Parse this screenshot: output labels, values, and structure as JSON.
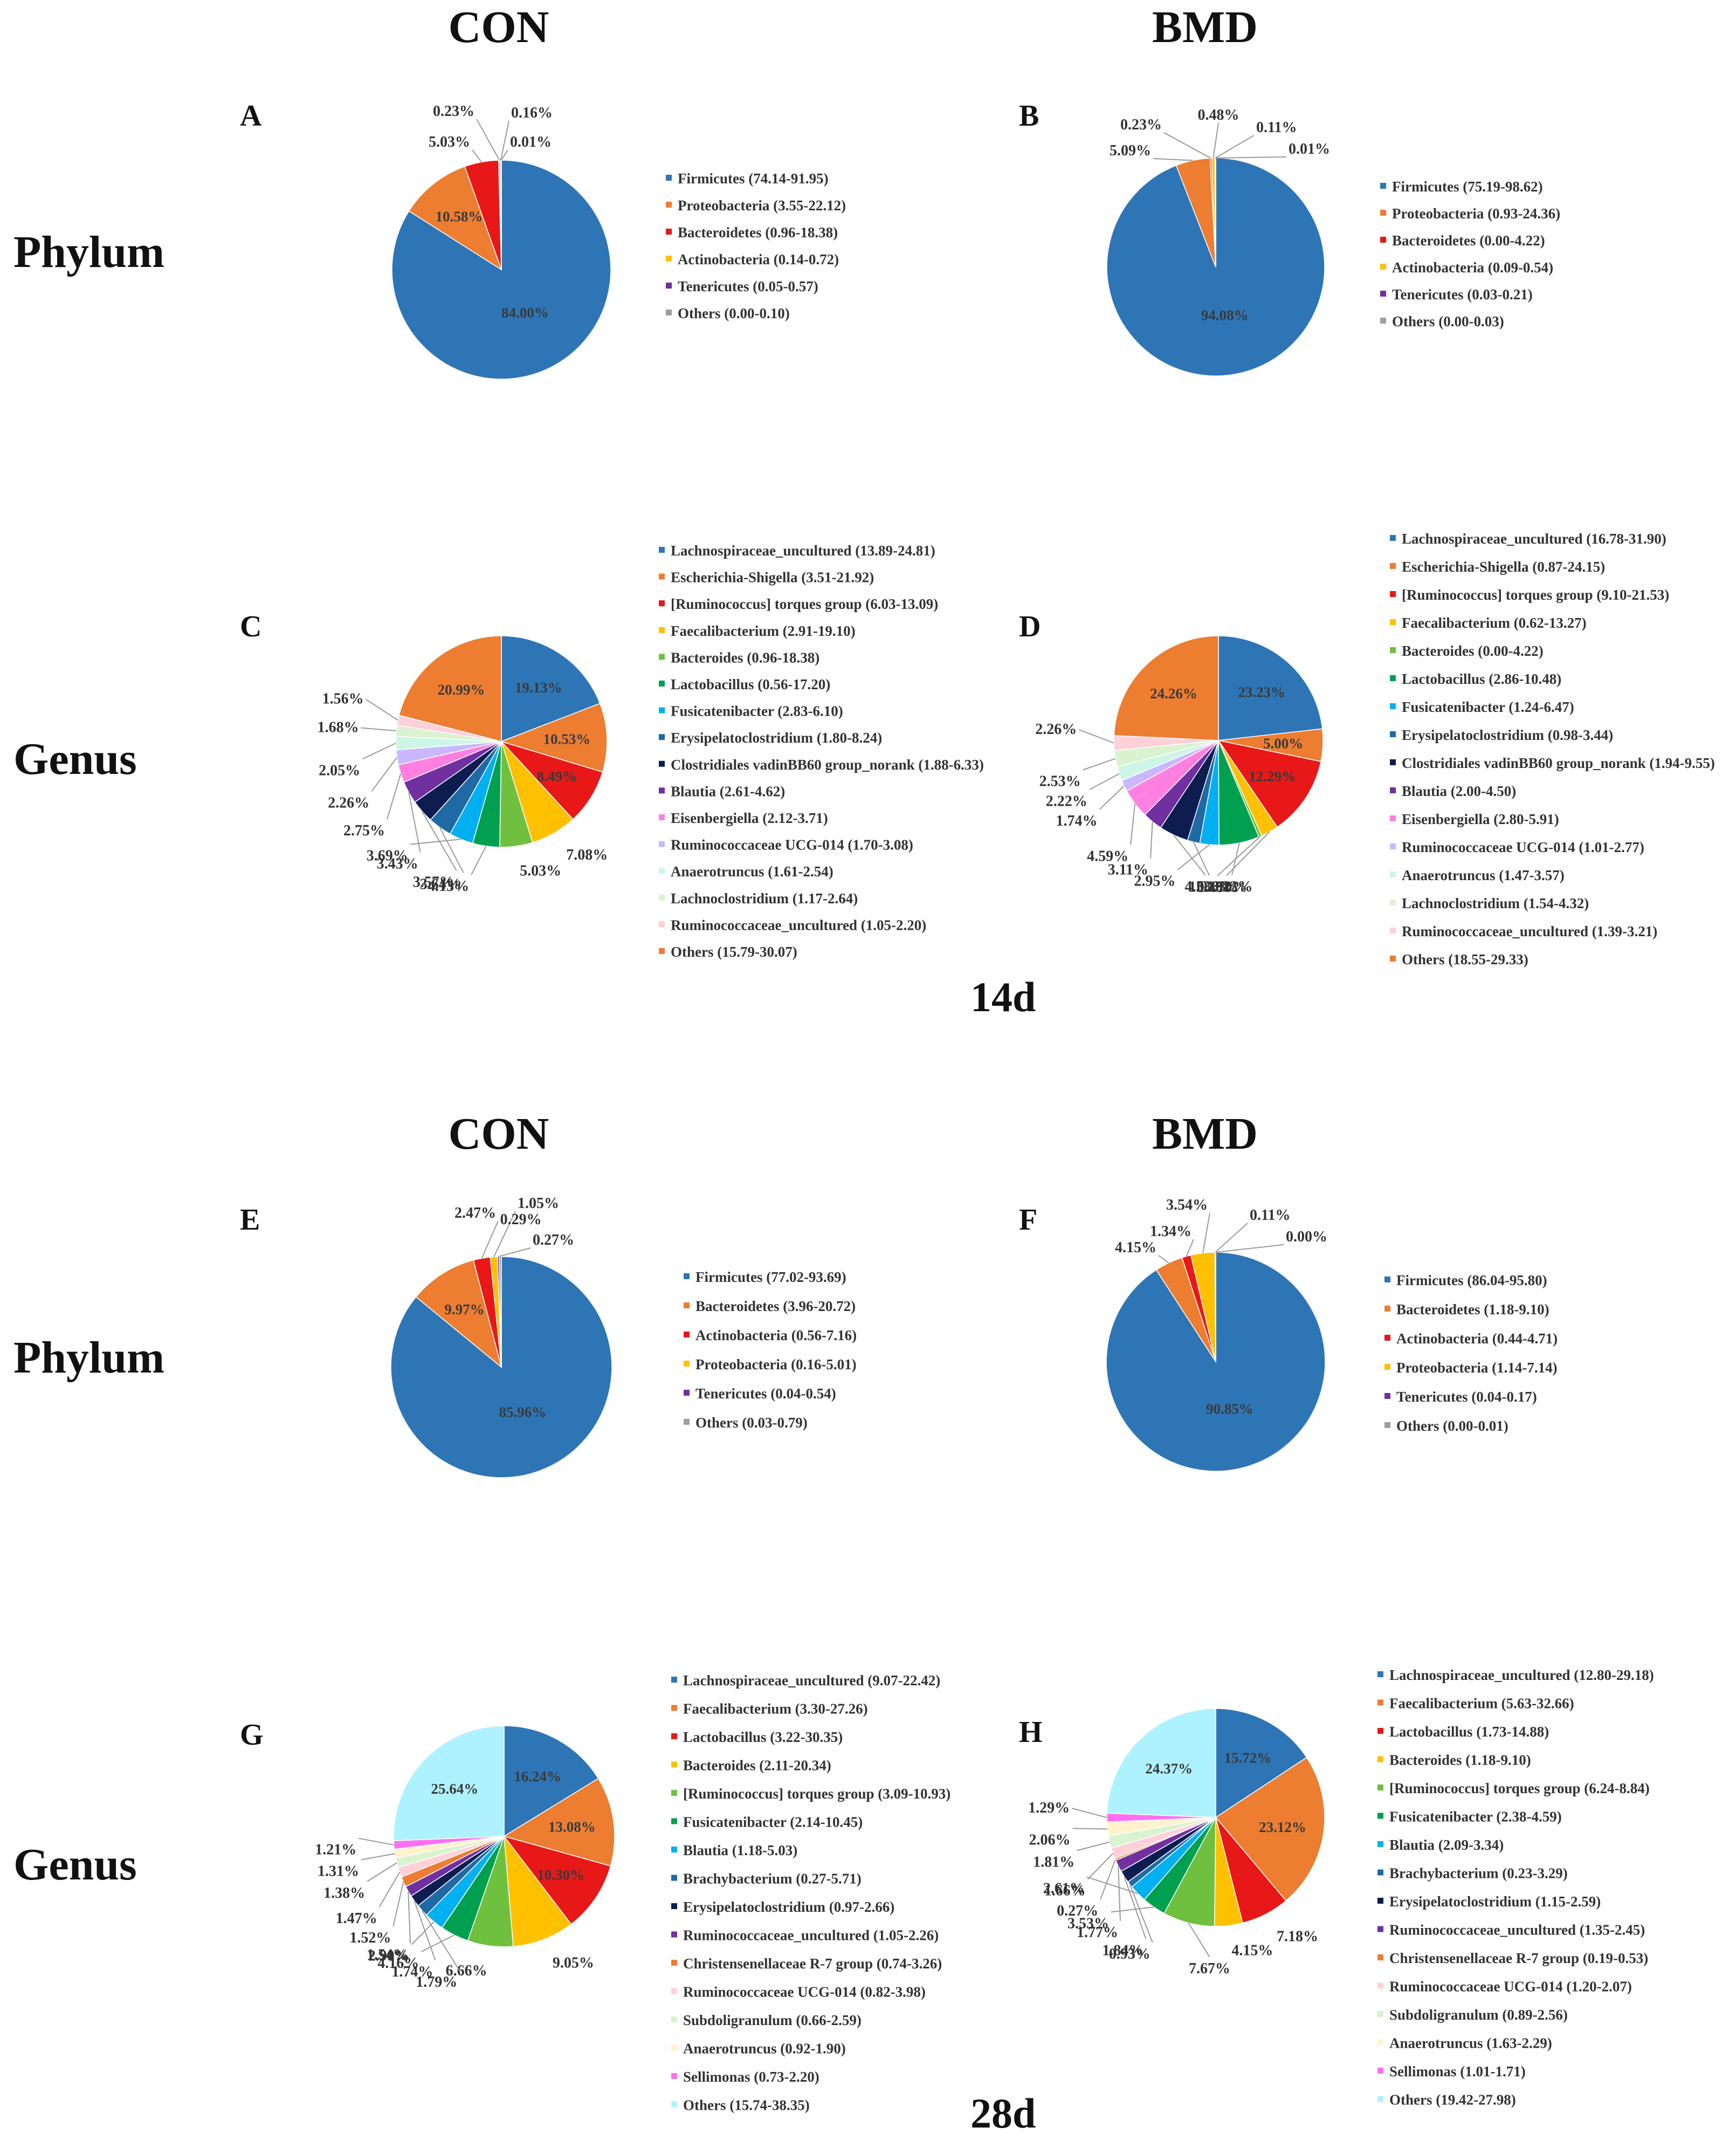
{
  "headers": {
    "con_top": "CON",
    "bmd_top": "BMD",
    "con_bottom": "CON",
    "bmd_bottom": "BMD",
    "phylum_top": "Phylum",
    "genus_top": "Genus",
    "phylum_bottom": "Phylum",
    "genus_bottom": "Genus",
    "day14": "14d",
    "day28": "28d"
  },
  "colors": {
    "blue": "#2e75b6",
    "orange": "#ed7d31",
    "red": "#e81818",
    "yellow": "#ffc000",
    "green": "#70c040",
    "dkgreen": "#00a050",
    "cyan": "#00b0f0",
    "steel": "#1f6aa5",
    "navy": "#0d1d50",
    "purple": "#7030a0",
    "pink": "#ff80e0",
    "lavender": "#c9b8ff",
    "mint": "#cdf5e6",
    "palegreen": "#d9f2d0",
    "blush": "#ffd0d8",
    "cream": "#fff2cc",
    "magenta": "#ff70f0",
    "aqua": "#aef2ff",
    "gray": "#9e9e9e"
  },
  "chart_data": [
    {
      "panel": "A",
      "type": "pie",
      "group": "CON",
      "level": "Phylum",
      "day": "14d",
      "legend": [
        "Firmicutes (74.14-91.95)",
        "Proteobacteria (3.55-22.12)",
        "Bacteroidetes (0.96-18.38)",
        "Actinobacteria (0.14-0.72)",
        "Tenericutes (0.05-0.57)",
        "Others (0.00-0.10)"
      ],
      "values": [
        84.0,
        10.58,
        5.03,
        0.23,
        0.16,
        0.01
      ],
      "labels": [
        "84.00%",
        "10.58%",
        "5.03%",
        "0.23%",
        "0.16%",
        "0.01%"
      ],
      "colors": [
        "blue",
        "orange",
        "red",
        "yellow",
        "purple",
        "gray"
      ]
    },
    {
      "panel": "B",
      "type": "pie",
      "group": "BMD",
      "level": "Phylum",
      "day": "14d",
      "legend": [
        "Firmicutes (75.19-98.62)",
        "Proteobacteria (0.93-24.36)",
        "Bacteroidetes (0.00-4.22)",
        "Actinobacteria (0.09-0.54)",
        "Tenericutes (0.03-0.21)",
        "Others (0.00-0.03)"
      ],
      "values": [
        94.08,
        5.09,
        0.23,
        0.48,
        0.11,
        0.01
      ],
      "labels": [
        "94.08%",
        "5.09%",
        "0.23%",
        "0.48%",
        "0.11%",
        "0.01%"
      ],
      "colors": [
        "blue",
        "orange",
        "red",
        "yellow",
        "purple",
        "gray"
      ]
    },
    {
      "panel": "C",
      "type": "pie",
      "group": "CON",
      "level": "Genus",
      "day": "14d",
      "legend": [
        "Lachnospiraceae_uncultured (13.89-24.81)",
        "Escherichia-Shigella (3.51-21.92)",
        "[Ruminococcus] torques group (6.03-13.09)",
        "Faecalibacterium (2.91-19.10)",
        "Bacteroides (0.96-18.38)",
        "Lactobacillus (0.56-17.20)",
        "Fusicatenibacter (2.83-6.10)",
        "Erysipelatoclostridium (1.80-8.24)",
        "Clostridiales vadinBB60 group_norank (1.88-6.33)",
        "Blautia (2.61-4.62)",
        "Eisenbergiella (2.12-3.71)",
        "Ruminococcaceae UCG-014 (1.70-3.08)",
        "Anaerotruncus (1.61-2.54)",
        "Lachnoclostridium (1.17-2.64)",
        "Ruminococcaceae_uncultured (1.05-2.20)",
        "Others (15.79-30.07)"
      ],
      "values": [
        19.13,
        10.53,
        8.49,
        7.08,
        5.03,
        4.13,
        3.69,
        3.64,
        3.57,
        3.43,
        2.75,
        2.26,
        2.05,
        1.68,
        1.56,
        20.99
      ],
      "labels": [
        "19.13%",
        "10.53%",
        "8.49%",
        "7.08%",
        "5.03%",
        "4.13%",
        "3.69%",
        "3.64%",
        "3.57%",
        "3.43%",
        "2.75%",
        "2.26%",
        "2.05%",
        "1.68%",
        "1.56%",
        "20.99%"
      ],
      "colors": [
        "blue",
        "orange",
        "red",
        "yellow",
        "green",
        "dkgreen",
        "cyan",
        "steel",
        "navy",
        "purple",
        "pink",
        "lavender",
        "mint",
        "palegreen",
        "blush",
        "orange"
      ]
    },
    {
      "panel": "D",
      "type": "pie",
      "group": "BMD",
      "level": "Genus",
      "day": "14d",
      "legend": [
        "Lachnospiraceae_uncultured (16.78-31.90)",
        "Escherichia-Shigella (0.87-24.15)",
        "[Ruminococcus] torques group (9.10-21.53)",
        "Faecalibacterium (0.62-13.27)",
        "Bacteroides (0.00-4.22)",
        "Lactobacillus (2.86-10.48)",
        "Fusicatenibacter (1.24-6.47)",
        "Erysipelatoclostridium (0.98-3.44)",
        "Clostridiales vadinBB60 group_norank (1.94-9.55)",
        "Blautia (2.00-4.50)",
        "Eisenbergiella (2.80-5.91)",
        "Ruminococcaceae UCG-014 (1.01-2.77)",
        "Anaerotruncus (1.47-3.57)",
        "Lachnoclostridium (1.54-4.32)",
        "Ruminococcaceae_uncultured (1.39-3.21)",
        "Others (18.55-29.33)"
      ],
      "values": [
        23.23,
        5.0,
        12.29,
        2.7,
        0.48,
        6.23,
        2.95,
        1.92,
        4.53,
        3.11,
        4.59,
        1.74,
        2.22,
        2.53,
        2.26,
        24.26
      ],
      "labels": [
        "23.23%",
        "5.00%",
        "12.29%",
        "2.70%",
        "0.48%",
        "6.23%",
        "2.95%",
        "1.92%",
        "4.53%",
        "3.11%",
        "4.59%",
        "1.74%",
        "2.22%",
        "2.53%",
        "2.26%",
        "24.26%"
      ],
      "colors": [
        "blue",
        "orange",
        "red",
        "yellow",
        "green",
        "dkgreen",
        "cyan",
        "steel",
        "navy",
        "purple",
        "pink",
        "lavender",
        "mint",
        "palegreen",
        "blush",
        "orange"
      ]
    },
    {
      "panel": "E",
      "type": "pie",
      "group": "CON",
      "level": "Phylum",
      "day": "28d",
      "legend": [
        "Firmicutes (77.02-93.69)",
        "Bacteroidetes (3.96-20.72)",
        "Actinobacteria (0.56-7.16)",
        "Proteobacteria (0.16-5.01)",
        "Tenericutes (0.04-0.54)",
        "Others (0.03-0.79)"
      ],
      "values": [
        85.96,
        9.97,
        2.47,
        1.05,
        0.27,
        0.29
      ],
      "labels": [
        "85.96%",
        "9.97%",
        "2.47%",
        "1.05%",
        "0.27%",
        "0.29%"
      ],
      "colors": [
        "blue",
        "orange",
        "red",
        "yellow",
        "purple",
        "gray"
      ]
    },
    {
      "panel": "F",
      "type": "pie",
      "group": "BMD",
      "level": "Phylum",
      "day": "28d",
      "legend": [
        "Firmicutes (86.04-95.80)",
        "Bacteroidetes (1.18-9.10)",
        "Actinobacteria (0.44-4.71)",
        "Proteobacteria (1.14-7.14)",
        "Tenericutes (0.04-0.17)",
        "Others (0.00-0.01)"
      ],
      "values": [
        90.85,
        4.15,
        1.34,
        3.54,
        0.11,
        0.0
      ],
      "labels": [
        "90.85%",
        "4.15%",
        "1.34%",
        "3.54%",
        "0.11%",
        "0.00%"
      ],
      "colors": [
        "blue",
        "orange",
        "red",
        "yellow",
        "purple",
        "gray"
      ]
    },
    {
      "panel": "G",
      "type": "pie",
      "group": "CON",
      "level": "Genus",
      "day": "28d",
      "legend": [
        "Lachnospiraceae_uncultured (9.07-22.42)",
        "Faecalibacterium (3.30-27.26)",
        "Lactobacillus (3.22-30.35)",
        "Bacteroides (2.11-20.34)",
        "[Ruminococcus] torques group (3.09-10.93)",
        "Fusicatenibacter (2.14-10.45)",
        "Blautia (1.18-5.03)",
        "Brachybacterium (0.27-5.71)",
        "Erysipelatoclostridium (0.97-2.66)",
        "Ruminococcaceae_uncultured (1.05-2.26)",
        "Christensenellaceae R-7 group (0.74-3.26)",
        "Ruminococcaceae UCG-014 (0.82-3.98)",
        "Subdoligranulum (0.66-2.59)",
        "Anaerotruncus (0.92-1.90)",
        "Sellimonas (0.73-2.20)",
        "Others (15.74-38.35)"
      ],
      "values": [
        16.24,
        13.08,
        10.3,
        9.05,
        6.66,
        4.16,
        2.9,
        1.79,
        1.74,
        1.54,
        1.52,
        1.47,
        1.38,
        1.31,
        1.21,
        25.64
      ],
      "labels": [
        "16.24%",
        "13.08%",
        "10.30%",
        "9.05%",
        "6.66%",
        "4.16%",
        "2.90%",
        "1.79%",
        "1.74%",
        "1.54%",
        "1.52%",
        "1.47%",
        "1.38%",
        "1.31%",
        "1.21%",
        "25.64%"
      ],
      "colors": [
        "blue",
        "orange",
        "red",
        "yellow",
        "green",
        "dkgreen",
        "cyan",
        "steel",
        "navy",
        "purple",
        "orange",
        "blush",
        "palegreen",
        "cream",
        "magenta",
        "aqua"
      ]
    },
    {
      "panel": "H",
      "type": "pie",
      "group": "BMD",
      "level": "Genus",
      "day": "28d",
      "legend": [
        "Lachnospiraceae_uncultured (12.80-29.18)",
        "Faecalibacterium (5.63-32.66)",
        "Lactobacillus (1.73-14.88)",
        "Bacteroides (1.18-9.10)",
        "[Ruminococcus] torques group (6.24-8.84)",
        "Fusicatenibacter (2.38-4.59)",
        "Blautia (2.09-3.34)",
        "Brachybacterium (0.23-3.29)",
        "Erysipelatoclostridium (1.15-2.59)",
        "Ruminococcaceae_uncultured (1.35-2.45)",
        "Christensenellaceae R-7 group (0.19-0.53)",
        "Ruminococcaceae UCG-014 (1.20-2.07)",
        "Subdoligranulum (0.89-2.56)",
        "Anaerotruncus (1.63-2.29)",
        "Sellimonas (1.01-1.71)",
        "Others (19.42-27.98)"
      ],
      "values": [
        15.72,
        23.12,
        7.18,
        4.15,
        7.67,
        3.53,
        2.61,
        0.93,
        1.84,
        1.77,
        0.27,
        1.66,
        1.81,
        2.06,
        1.29,
        24.37
      ],
      "labels": [
        "15.72%",
        "23.12%",
        "7.18%",
        "4.15%",
        "7.67%",
        "3.53%",
        "2.61%",
        "0.93%",
        "1.84%",
        "1.77%",
        "0.27%",
        "1.66%",
        "1.81%",
        "2.06%",
        "1.29%",
        "24.37%"
      ],
      "colors": [
        "blue",
        "orange",
        "red",
        "yellow",
        "green",
        "dkgreen",
        "cyan",
        "steel",
        "navy",
        "purple",
        "orange",
        "blush",
        "palegreen",
        "cream",
        "magenta",
        "aqua"
      ]
    }
  ]
}
